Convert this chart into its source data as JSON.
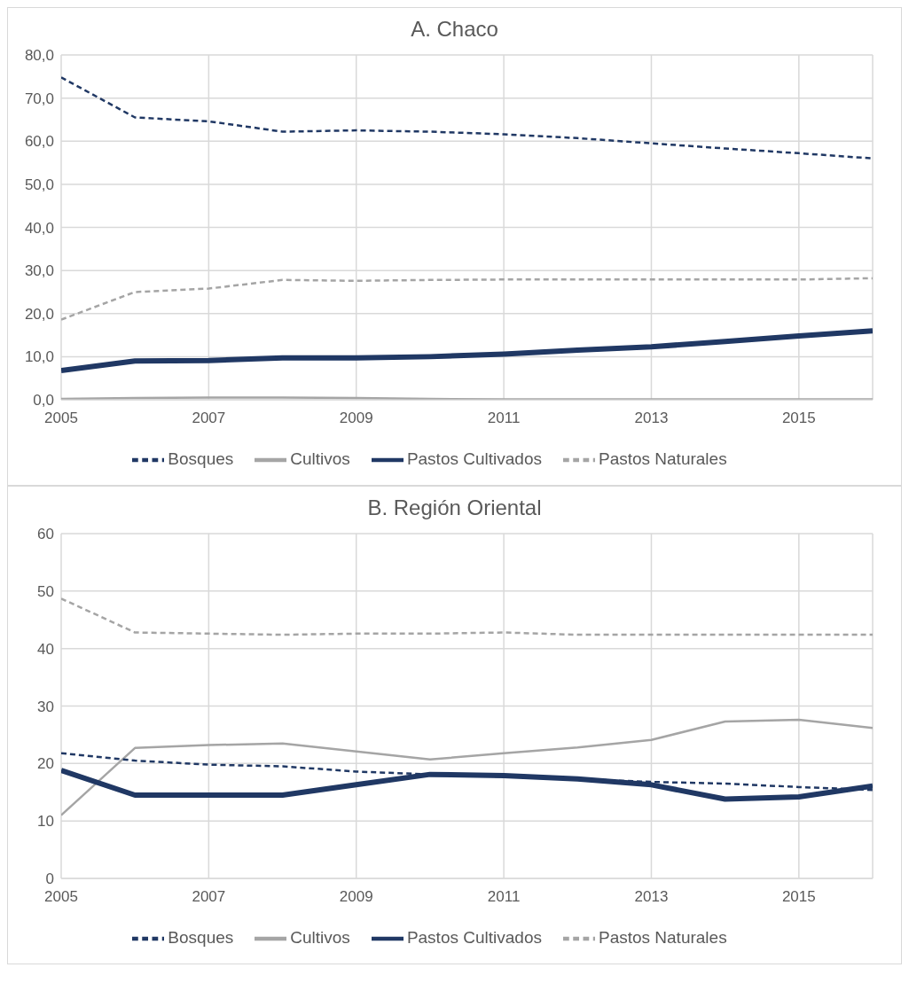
{
  "chart_data": [
    {
      "type": "line",
      "title": "A. Chaco",
      "x": [
        2005,
        2006,
        2007,
        2008,
        2009,
        2010,
        2011,
        2012,
        2013,
        2014,
        2015,
        2016
      ],
      "xlim": [
        2005,
        2016
      ],
      "xticks": [
        2005,
        2007,
        2009,
        2011,
        2013,
        2015
      ],
      "ylim": [
        0,
        80
      ],
      "yticks": [
        {
          "value": 0,
          "label": "0,0"
        },
        {
          "value": 10,
          "label": "10,0"
        },
        {
          "value": 20,
          "label": "20,0"
        },
        {
          "value": 30,
          "label": "30,0"
        },
        {
          "value": 40,
          "label": "40,0"
        },
        {
          "value": 50,
          "label": "50,0"
        },
        {
          "value": 60,
          "label": "60,0"
        },
        {
          "value": 70,
          "label": "70,0"
        },
        {
          "value": 80,
          "label": "80,0"
        }
      ],
      "grid": true,
      "legend": "bottom",
      "series": [
        {
          "name": "Cultivos",
          "color": "#a5a5a5",
          "line_style": "solid",
          "values": [
            0.2,
            0.4,
            0.5,
            0.5,
            0.4,
            0.2,
            0.1,
            0.1,
            0.1,
            0.1,
            0.1,
            0.1
          ]
        },
        {
          "name": "Bosques",
          "color": "#203864",
          "line_style": "dashed",
          "values": [
            74.8,
            65.5,
            64.6,
            62.2,
            62.5,
            62.2,
            61.6,
            60.7,
            59.5,
            58.3,
            57.2,
            56.0
          ]
        },
        {
          "name": "Pastos Naturales",
          "color": "#a5a5a5",
          "line_style": "dashed",
          "values": [
            18.6,
            25.0,
            25.8,
            27.8,
            27.6,
            27.8,
            27.9,
            27.9,
            27.9,
            27.9,
            27.9,
            28.2
          ]
        },
        {
          "name": "Pastos Cultivados",
          "color": "#203864",
          "line_style": "solid",
          "values": [
            6.8,
            9.0,
            9.1,
            9.7,
            9.7,
            10.0,
            10.6,
            11.5,
            12.3,
            13.5,
            14.8,
            16.0
          ]
        }
      ]
    },
    {
      "type": "line",
      "title": "B. Región Oriental",
      "x": [
        2005,
        2006,
        2007,
        2008,
        2009,
        2010,
        2011,
        2012,
        2013,
        2014,
        2015,
        2016
      ],
      "xlim": [
        2005,
        2016
      ],
      "xticks": [
        2005,
        2007,
        2009,
        2011,
        2013,
        2015
      ],
      "ylim": [
        0,
        60
      ],
      "yticks": [
        0,
        10,
        20,
        30,
        40,
        50,
        60
      ],
      "grid": true,
      "legend": "bottom",
      "series": [
        {
          "name": "Cultivos",
          "color": "#a5a5a5",
          "line_style": "solid",
          "values": [
            11.0,
            22.7,
            23.2,
            23.5,
            22.1,
            20.7,
            21.8,
            22.8,
            24.1,
            27.3,
            27.6,
            26.2
          ]
        },
        {
          "name": "Bosques",
          "color": "#203864",
          "line_style": "dashed",
          "values": [
            21.8,
            20.5,
            19.8,
            19.5,
            18.6,
            18.1,
            17.7,
            17.3,
            16.8,
            16.5,
            15.9,
            15.4
          ]
        },
        {
          "name": "Pastos Naturales",
          "color": "#a5a5a5",
          "line_style": "dashed",
          "values": [
            48.7,
            42.8,
            42.6,
            42.4,
            42.6,
            42.6,
            42.8,
            42.4,
            42.4,
            42.4,
            42.4,
            42.4
          ]
        },
        {
          "name": "Pastos Cultivados",
          "color": "#203864",
          "line_style": "solid",
          "values": [
            18.8,
            14.5,
            14.5,
            14.5,
            16.3,
            18.1,
            17.9,
            17.3,
            16.3,
            13.8,
            14.2,
            16.1
          ]
        }
      ]
    }
  ]
}
